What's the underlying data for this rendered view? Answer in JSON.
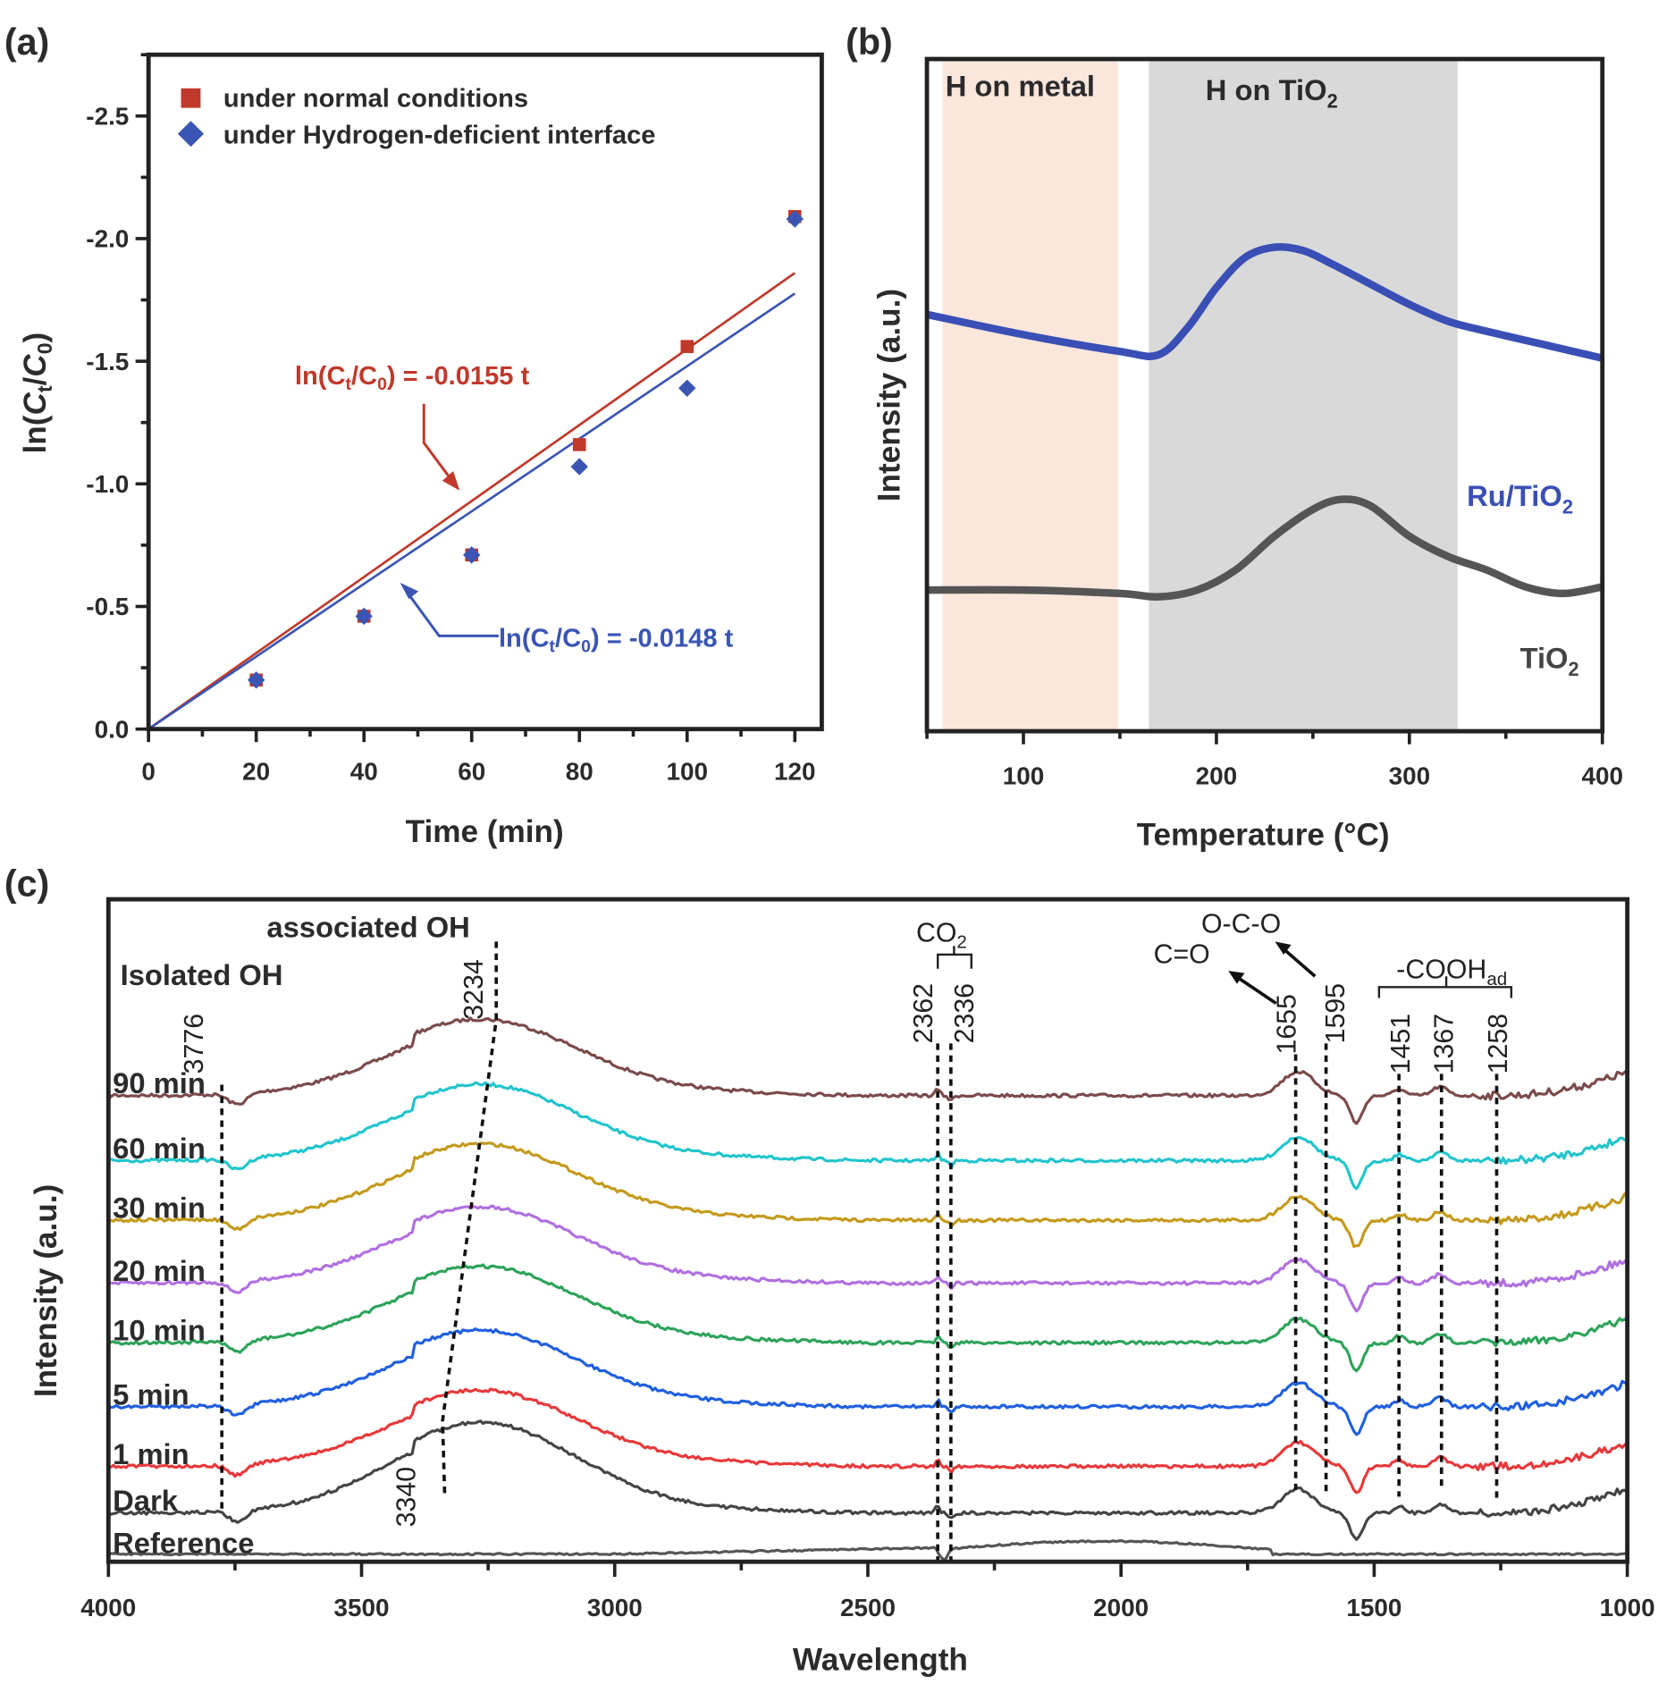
{
  "chart_data": [
    {
      "panel": "(a)",
      "type": "scatter",
      "xlabel": "Time (min)",
      "ylabel": "ln(Ct/C0)",
      "xlim": [
        0,
        125
      ],
      "ylim": [
        0,
        -2.75
      ],
      "x_ticks": [
        0,
        20,
        40,
        60,
        80,
        100,
        120
      ],
      "y_ticks": [
        0.0,
        -0.5,
        -1.0,
        -1.5,
        -2.0,
        -2.5
      ],
      "y_tick_labels": [
        "0.0",
        "-0.5",
        "-1.0",
        "-1.5",
        "-2.0",
        "-2.5"
      ],
      "legend_position": "top-left",
      "series": [
        {
          "name": "under normal conditions",
          "marker": "square",
          "color": "#c0392b",
          "x": [
            20,
            40,
            60,
            80,
            100,
            120
          ],
          "y": [
            -0.2,
            -0.46,
            -0.71,
            -1.16,
            -1.56,
            -2.09
          ],
          "fit": {
            "slope": -0.0155,
            "label_prefix": "ln(C",
            "label_sub1": "t",
            "label_mid": "/C",
            "label_sub2": "0",
            "label_suffix": ") = -0.0155 t"
          }
        },
        {
          "name": "under Hydrogen-deficient interface",
          "marker": "diamond",
          "color": "#3a55b4",
          "x": [
            20,
            40,
            60,
            80,
            100,
            120
          ],
          "y": [
            -0.2,
            -0.46,
            -0.71,
            -1.07,
            -1.39,
            -2.08
          ],
          "fit": {
            "slope": -0.0148,
            "label_prefix": "ln(C",
            "label_sub1": "t",
            "label_mid": "/C",
            "label_sub2": "0",
            "label_suffix": ") = -0.0148 t"
          }
        }
      ]
    },
    {
      "panel": "(b)",
      "type": "line",
      "xlabel": "Temperature (°C)",
      "ylabel": "Intensity (a.u.)",
      "xlim": [
        50,
        400
      ],
      "x_ticks": [
        100,
        200,
        300,
        400
      ],
      "bands": [
        {
          "label": "H on metal",
          "from": 58,
          "to": 149,
          "color": "#fbe6dc"
        },
        {
          "label_main": "H on TiO",
          "label_sub": "2",
          "from": 165,
          "to": 325,
          "color": "#d9d9d9"
        }
      ],
      "series": [
        {
          "name_main": "Ru/TiO",
          "name_sub": "2",
          "color": "#3a4fb5",
          "x": [
            50,
            100,
            150,
            170,
            185,
            200,
            215,
            230,
            245,
            260,
            280,
            300,
            320,
            340,
            370,
            400
          ],
          "y": [
            0.62,
            0.59,
            0.565,
            0.56,
            0.6,
            0.66,
            0.705,
            0.72,
            0.715,
            0.695,
            0.665,
            0.635,
            0.61,
            0.595,
            0.575,
            0.555
          ]
        },
        {
          "name_main": "TiO",
          "name_sub": "2",
          "color": "#555555",
          "x": [
            50,
            100,
            150,
            170,
            190,
            210,
            230,
            250,
            265,
            280,
            300,
            320,
            340,
            360,
            380,
            400
          ],
          "y": [
            0.21,
            0.21,
            0.205,
            0.2,
            0.21,
            0.24,
            0.29,
            0.33,
            0.345,
            0.335,
            0.29,
            0.26,
            0.24,
            0.215,
            0.205,
            0.215
          ]
        }
      ]
    },
    {
      "panel": "(c)",
      "type": "line",
      "xlabel": "Wavelength",
      "ylabel": "Intensity (a.u.)",
      "xlim": [
        4000,
        1000
      ],
      "x_ticks": [
        4000,
        3500,
        3000,
        2500,
        2000,
        1500,
        1000
      ],
      "series": [
        {
          "name": "90 min",
          "color": "#7b4a4a",
          "offset": 8
        },
        {
          "name": "60 min",
          "color": "#22c4cc",
          "offset": 7
        },
        {
          "name": "30 min",
          "color": "#c49a1c",
          "offset": 6
        },
        {
          "name": "20 min",
          "color": "#b070e0",
          "offset": 5
        },
        {
          "name": "10 min",
          "color": "#2ea35a",
          "offset": 4
        },
        {
          "name": "5 min",
          "color": "#1f5fe0",
          "offset": 3
        },
        {
          "name": "1 min",
          "color": "#e8383a",
          "offset": 2
        },
        {
          "name": "Dark",
          "color": "#444444",
          "offset": 1
        },
        {
          "name": "Reference",
          "color": "#555555",
          "offset": 0
        }
      ],
      "peak_markers": [
        3776,
        3234,
        3340,
        2362,
        2336,
        1655,
        1595,
        1451,
        1367,
        1258
      ],
      "annotations": {
        "isolated_oh": "Isolated OH",
        "associated_oh": "associated OH",
        "co2_main": "CO",
        "co2_sub": "2",
        "c_eq_o": "C=O",
        "o_c_o": "O-C-O",
        "cooh_main": "-COOH",
        "cooh_sub": "ad",
        "p3776": "3776",
        "p3234": "3234",
        "p3340": "3340",
        "p2362": "2362",
        "p2336": "2336",
        "p1655": "1655",
        "p1595": "1595",
        "p1451": "1451",
        "p1367": "1367",
        "p1258": "1258"
      }
    }
  ],
  "labels": {
    "a": "(a)",
    "b": "(b)",
    "c": "(c)",
    "a_ylabel_prefix": "ln(",
    "a_ylabel_c1": "C",
    "a_ylabel_s1": "t",
    "a_ylabel_mid": "/",
    "a_ylabel_c2": "C",
    "a_ylabel_s2": "0",
    "a_ylabel_suffix": ")"
  }
}
